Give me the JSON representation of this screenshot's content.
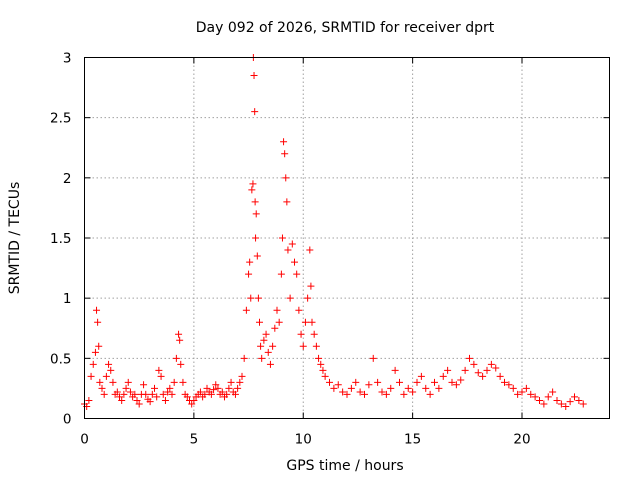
{
  "chart_data": {
    "type": "scatter",
    "title": "Day 092 of 2026, SRMTID for receiver dprt",
    "xlabel": "GPS time / hours",
    "ylabel": "SRMTID / TECUs",
    "xlim": [
      0,
      24
    ],
    "ylim": [
      0,
      3
    ],
    "x_ticks": [
      0,
      5,
      10,
      15,
      20
    ],
    "x_tick_labels": [
      "0",
      "5",
      "10",
      "15",
      "20"
    ],
    "y_ticks": [
      0,
      0.5,
      1,
      1.5,
      2,
      2.5,
      3
    ],
    "y_tick_labels": [
      "0",
      "0.5",
      "1",
      "1.5",
      "2",
      "2.5",
      "3"
    ],
    "grid": true,
    "marker": "+",
    "color": "#ff0000",
    "series": [
      {
        "name": "SRMTID",
        "x": [
          0.0,
          0.1,
          0.2,
          0.3,
          0.4,
          0.5,
          0.55,
          0.6,
          0.65,
          0.7,
          0.8,
          0.9,
          1.0,
          1.1,
          1.2,
          1.3,
          1.4,
          1.5,
          1.6,
          1.7,
          1.8,
          1.9,
          2.0,
          2.1,
          2.2,
          2.3,
          2.4,
          2.5,
          2.6,
          2.7,
          2.8,
          2.9,
          3.0,
          3.1,
          3.2,
          3.3,
          3.4,
          3.5,
          3.6,
          3.7,
          3.8,
          3.9,
          4.0,
          4.1,
          4.2,
          4.3,
          4.35,
          4.4,
          4.5,
          4.6,
          4.7,
          4.8,
          4.9,
          5.0,
          5.1,
          5.2,
          5.3,
          5.4,
          5.5,
          5.6,
          5.7,
          5.8,
          5.9,
          6.0,
          6.1,
          6.2,
          6.3,
          6.4,
          6.5,
          6.6,
          6.7,
          6.8,
          6.9,
          7.0,
          7.1,
          7.2,
          7.3,
          7.4,
          7.5,
          7.55,
          7.6,
          7.65,
          7.7,
          7.72,
          7.75,
          7.78,
          7.8,
          7.82,
          7.85,
          7.9,
          7.95,
          8.0,
          8.05,
          8.1,
          8.2,
          8.3,
          8.4,
          8.5,
          8.6,
          8.7,
          8.8,
          8.9,
          9.0,
          9.05,
          9.1,
          9.15,
          9.2,
          9.25,
          9.3,
          9.4,
          9.5,
          9.6,
          9.7,
          9.8,
          9.9,
          10.0,
          10.1,
          10.2,
          10.3,
          10.35,
          10.4,
          10.5,
          10.6,
          10.7,
          10.8,
          10.9,
          11.0,
          11.2,
          11.4,
          11.6,
          11.8,
          12.0,
          12.2,
          12.4,
          12.6,
          12.8,
          13.0,
          13.2,
          13.4,
          13.6,
          13.8,
          14.0,
          14.2,
          14.4,
          14.6,
          14.8,
          15.0,
          15.2,
          15.4,
          15.6,
          15.8,
          16.0,
          16.2,
          16.4,
          16.6,
          16.8,
          17.0,
          17.2,
          17.4,
          17.6,
          17.8,
          18.0,
          18.2,
          18.4,
          18.6,
          18.8,
          19.0,
          19.2,
          19.4,
          19.6,
          19.8,
          20.0,
          20.2,
          20.4,
          20.6,
          20.8,
          21.0,
          21.2,
          21.4,
          21.6,
          21.8,
          22.0,
          22.2,
          22.4,
          22.6,
          22.8
        ],
        "y": [
          0.12,
          0.1,
          0.15,
          0.35,
          0.45,
          0.55,
          0.9,
          0.8,
          0.6,
          0.3,
          0.25,
          0.2,
          0.35,
          0.45,
          0.4,
          0.3,
          0.2,
          0.22,
          0.18,
          0.15,
          0.2,
          0.25,
          0.3,
          0.22,
          0.18,
          0.2,
          0.15,
          0.12,
          0.2,
          0.28,
          0.2,
          0.16,
          0.14,
          0.2,
          0.25,
          0.18,
          0.4,
          0.35,
          0.2,
          0.15,
          0.22,
          0.25,
          0.2,
          0.3,
          0.5,
          0.7,
          0.65,
          0.45,
          0.3,
          0.2,
          0.18,
          0.15,
          0.12,
          0.15,
          0.18,
          0.2,
          0.22,
          0.18,
          0.2,
          0.25,
          0.22,
          0.2,
          0.24,
          0.28,
          0.25,
          0.2,
          0.22,
          0.18,
          0.2,
          0.25,
          0.3,
          0.22,
          0.2,
          0.25,
          0.3,
          0.35,
          0.5,
          0.9,
          1.2,
          1.3,
          1.0,
          1.9,
          1.95,
          3.0,
          2.85,
          2.55,
          1.8,
          1.5,
          1.7,
          1.35,
          1.0,
          0.8,
          0.6,
          0.5,
          0.65,
          0.7,
          0.55,
          0.45,
          0.6,
          0.75,
          0.9,
          0.8,
          1.2,
          1.5,
          2.3,
          2.2,
          2.0,
          1.8,
          1.4,
          1.0,
          1.45,
          1.3,
          1.2,
          0.9,
          0.7,
          0.6,
          0.8,
          1.0,
          1.4,
          1.1,
          0.8,
          0.7,
          0.6,
          0.5,
          0.45,
          0.4,
          0.35,
          0.3,
          0.25,
          0.28,
          0.22,
          0.2,
          0.25,
          0.3,
          0.22,
          0.2,
          0.28,
          0.5,
          0.3,
          0.22,
          0.2,
          0.25,
          0.4,
          0.3,
          0.2,
          0.25,
          0.22,
          0.3,
          0.35,
          0.25,
          0.2,
          0.3,
          0.25,
          0.35,
          0.4,
          0.3,
          0.28,
          0.32,
          0.4,
          0.5,
          0.45,
          0.38,
          0.35,
          0.4,
          0.45,
          0.42,
          0.35,
          0.3,
          0.28,
          0.25,
          0.2,
          0.22,
          0.25,
          0.2,
          0.18,
          0.15,
          0.12,
          0.18,
          0.22,
          0.15,
          0.12,
          0.1,
          0.14,
          0.18,
          0.15,
          0.12
        ]
      }
    ]
  }
}
